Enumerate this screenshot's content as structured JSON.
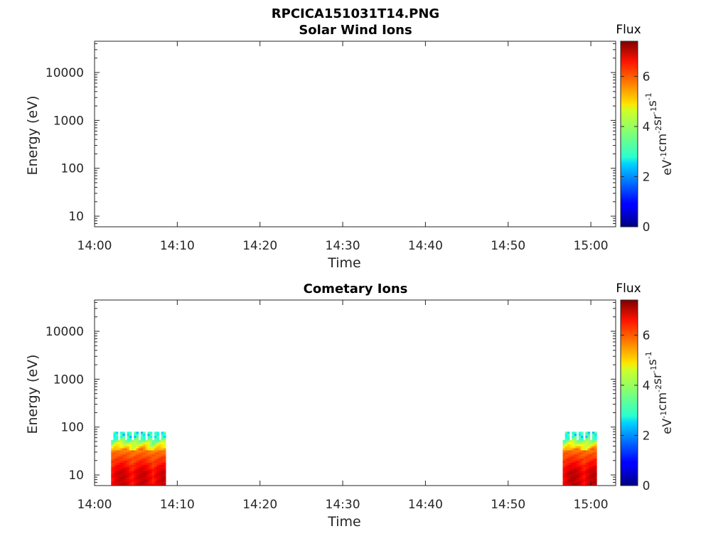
{
  "page_title": "RPCICA151031T14.PNG",
  "colorbar": {
    "label": "Flux",
    "units_parts": [
      "eV",
      "-1",
      "cm",
      "-2",
      "sr",
      "-1",
      "s",
      "-1"
    ],
    "ticks": [
      0,
      2,
      4,
      6
    ],
    "range": [
      0,
      7.4
    ],
    "colormap": "jet"
  },
  "chart_data": [
    {
      "type": "heatmap",
      "title": "Solar Wind Ions",
      "xlabel": "Time",
      "ylabel": "Energy (eV)",
      "x_ticks": [
        "14:00",
        "14:10",
        "14:20",
        "14:30",
        "14:40",
        "14:50",
        "15:00"
      ],
      "x_range_minutes": [
        0,
        63
      ],
      "y_scale": "log",
      "y_ticks": [
        "10",
        "100",
        "1000",
        "10000"
      ],
      "y_range": [
        6,
        45000
      ],
      "patches": []
    },
    {
      "type": "heatmap",
      "title": "Cometary Ions",
      "xlabel": "Time",
      "ylabel": "Energy (eV)",
      "x_ticks": [
        "14:00",
        "14:10",
        "14:20",
        "14:30",
        "14:40",
        "14:50",
        "15:00"
      ],
      "x_range_minutes": [
        0,
        63
      ],
      "y_scale": "log",
      "y_ticks": [
        "10",
        "100",
        "1000",
        "10000"
      ],
      "y_range": [
        6,
        45000
      ],
      "patches": [
        {
          "t_start": 2.0,
          "t_end": 8.6,
          "e_min": 6,
          "e_max": 80,
          "peak_flux": 7.2
        },
        {
          "t_start": 56.6,
          "t_end": 60.7,
          "e_min": 6,
          "e_max": 80,
          "peak_flux": 7.3
        }
      ]
    }
  ]
}
